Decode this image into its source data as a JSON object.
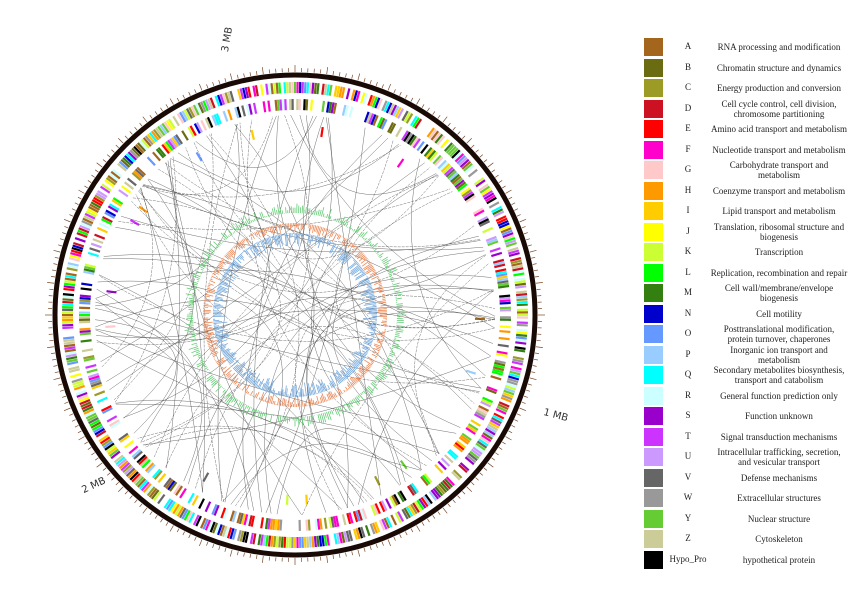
{
  "genome_labels": [
    "3 MB",
    "1 MB",
    "2 MB"
  ],
  "legend": [
    {
      "code": "A",
      "color": "#a3661c",
      "description": "RNA processing and modification"
    },
    {
      "code": "B",
      "color": "#6b6b12",
      "description": "Chromatin structure and dynamics"
    },
    {
      "code": "C",
      "color": "#9b9b26",
      "description": "Energy production and conversion"
    },
    {
      "code": "D",
      "color": "#cc1122",
      "description": "Cell cycle control, cell division, chromosome partitioning"
    },
    {
      "code": "E",
      "color": "#ff0000",
      "description": "Amino acid transport and metabolism"
    },
    {
      "code": "F",
      "color": "#ff00cc",
      "description": "Nucleotide transport and metabolism"
    },
    {
      "code": "G",
      "color": "#ffc9c9",
      "description": "Carbohydrate transport and metabolism"
    },
    {
      "code": "H",
      "color": "#ff9900",
      "description": "Coenzyme transport and metabolism"
    },
    {
      "code": "I",
      "color": "#ffcc00",
      "description": "Lipid transport and metabolism"
    },
    {
      "code": "J",
      "color": "#ffff00",
      "description": "Translation, ribosomal structure and biogenesis"
    },
    {
      "code": "K",
      "color": "#ccff33",
      "description": "Transcription"
    },
    {
      "code": "L",
      "color": "#00ff00",
      "description": "Replication, recombination and repair"
    },
    {
      "code": "M",
      "color": "#338011",
      "description": "Cell wall/membrane/envelope biogenesis"
    },
    {
      "code": "N",
      "color": "#0000cc",
      "description": "Cell motility"
    },
    {
      "code": "O",
      "color": "#6699ff",
      "description": "Posttranslational modification, protein turnover, chaperones"
    },
    {
      "code": "P",
      "color": "#99ccff",
      "description": "Inorganic ion transport and metabolism"
    },
    {
      "code": "Q",
      "color": "#00ffff",
      "description": "Secondary metabolites biosynthesis, transport and catabolism"
    },
    {
      "code": "R",
      "color": "#ccffff",
      "description": "General function prediction only"
    },
    {
      "code": "S",
      "color": "#9900cc",
      "description": "Function unknown"
    },
    {
      "code": "T",
      "color": "#cc33ff",
      "description": "Signal transduction mechanisms"
    },
    {
      "code": "U",
      "color": "#cc99ff",
      "description": "Intracellular trafficking, secretion, and vesicular transport"
    },
    {
      "code": "V",
      "color": "#666666",
      "description": "Defense mechanisms"
    },
    {
      "code": "W",
      "color": "#999999",
      "description": "Extracellular structures"
    },
    {
      "code": "Y",
      "color": "#66cc33",
      "description": "Nuclear structure"
    },
    {
      "code": "Z",
      "color": "#cccc99",
      "description": "Cytoskeleton"
    },
    {
      "code": "Hypo_Pro",
      "color": "#000000",
      "description": "hypothetical protein"
    }
  ]
}
